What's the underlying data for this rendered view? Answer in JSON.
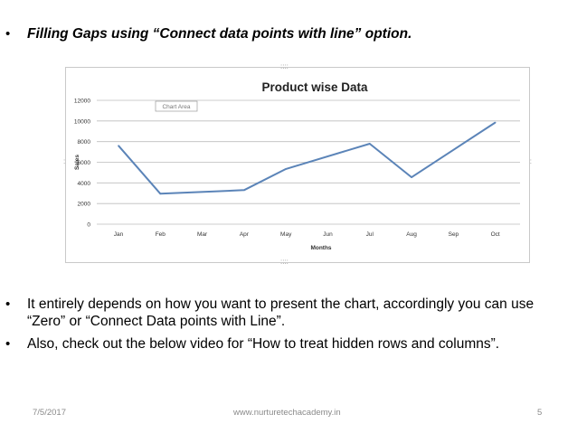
{
  "bullets": [
    {
      "symbol": "•",
      "text": "Filling Gaps using “Connect data points with line” option."
    },
    {
      "symbol": "•",
      "text": "It entirely depends on how you want to present the chart, accordingly you can use “Zero” or “Connect Data points with Line”."
    },
    {
      "symbol": "•",
      "text": "Also, check out the below video for “How to treat hidden rows and columns”."
    }
  ],
  "chart_tooltip": "Chart Area",
  "chart_data": {
    "type": "line",
    "title": "Product wise Data",
    "xlabel": "Months",
    "ylabel": "Sales",
    "categories": [
      "Jan",
      "Feb",
      "Mar",
      "Apr",
      "May",
      "Jun",
      "Jul",
      "Aug",
      "Sep",
      "Oct"
    ],
    "series": [
      {
        "values": [
          7600,
          2950,
          null,
          3300,
          5350,
          null,
          7800,
          4550,
          null,
          9850
        ]
      }
    ],
    "connect_gaps": true,
    "ylim": [
      0,
      12000
    ],
    "yticks": [
      0,
      2000,
      4000,
      6000,
      8000,
      10000,
      12000
    ],
    "grid": true,
    "line_color": "#5b84b8"
  },
  "footer": {
    "date": "7/5/2017",
    "website": "www.nurturetechacademy.in",
    "page": "5"
  }
}
